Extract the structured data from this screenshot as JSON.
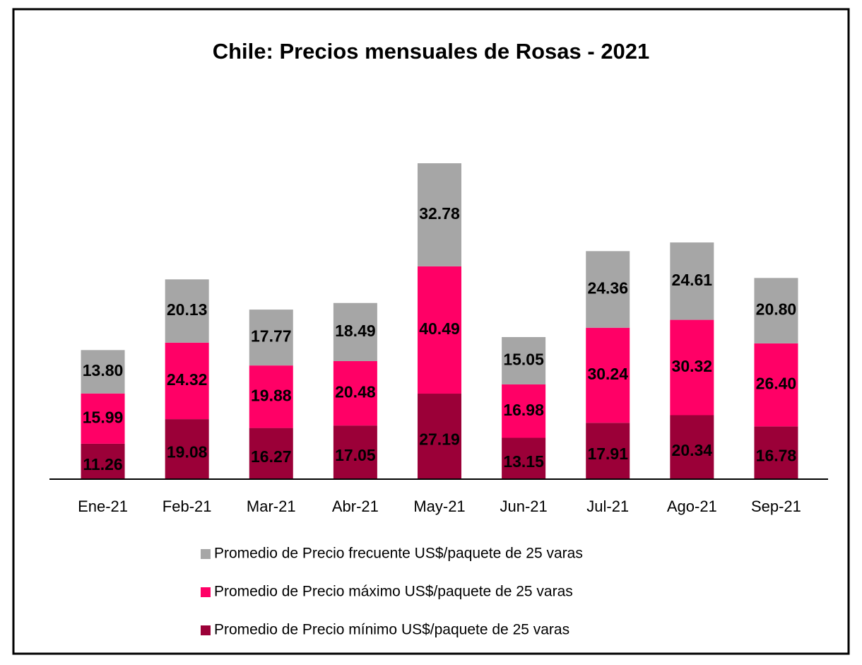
{
  "chart_data": {
    "type": "stacked_bar",
    "title": "Chile: Precios mensuales de Rosas - 2021",
    "categories": [
      "Ene-21",
      "Feb-21",
      "Mar-21",
      "Abr-21",
      "May-21",
      "Jun-21",
      "Jul-21",
      "Ago-21",
      "Sep-21"
    ],
    "series": [
      {
        "name": "Promedio de Precio mínimo US$/paquete de 25 varas",
        "color": "#9b0038",
        "values": [
          11.26,
          19.08,
          16.27,
          17.05,
          27.19,
          13.15,
          17.91,
          20.34,
          16.78
        ],
        "value_labels": [
          "11.26",
          "19.08",
          "16.27",
          "17.05",
          "27.19",
          "13.15",
          "17.91",
          "20.34",
          "16.78"
        ]
      },
      {
        "name": "Promedio de Precio máximo US$/paquete de 25 varas",
        "color": "#ff0066",
        "values": [
          15.99,
          24.32,
          19.88,
          20.48,
          40.49,
          16.98,
          30.24,
          30.32,
          26.4
        ],
        "value_labels": [
          "15.99",
          "24.32",
          "19.88",
          "20.48",
          "40.49",
          "16.98",
          "30.24",
          "30.32",
          "26.40"
        ]
      },
      {
        "name": "Promedio de Precio frecuente US$/paquete de 25 varas",
        "color": "#a6a6a6",
        "values": [
          13.8,
          20.13,
          17.77,
          18.49,
          32.78,
          15.05,
          24.36,
          24.61,
          20.8
        ],
        "value_labels": [
          "13.80",
          "20.13",
          "17.77",
          "18.49",
          "32.78",
          "15.05",
          "24.36",
          "24.61",
          "20.80"
        ]
      }
    ],
    "legend": "bottom"
  }
}
